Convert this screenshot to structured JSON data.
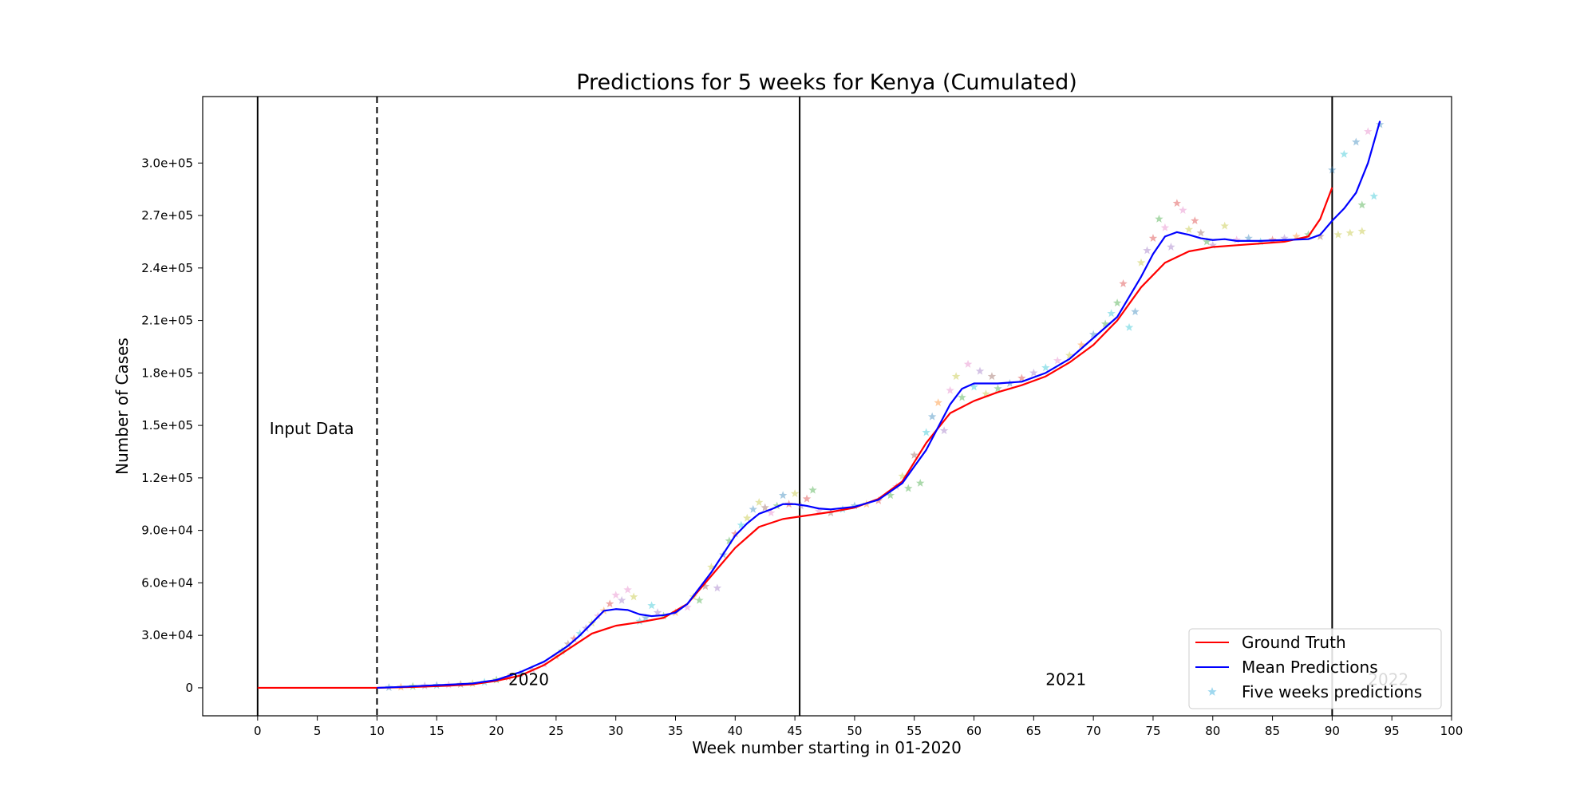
{
  "chart_data": {
    "type": "line",
    "title": "Predictions for 5 weeks for Kenya (Cumulated)",
    "xlabel": "Week number starting in 01-2020",
    "ylabel": "Number of Cases",
    "xlim": [
      -4.6,
      100
    ],
    "ylim": [
      -16000,
      338000
    ],
    "x_ticks": [
      0,
      5,
      10,
      15,
      20,
      25,
      30,
      35,
      40,
      45,
      50,
      55,
      60,
      65,
      70,
      75,
      80,
      85,
      90,
      95,
      100
    ],
    "x_tick_labels": [
      "0",
      "5",
      "10",
      "15",
      "20",
      "25",
      "30",
      "35",
      "40",
      "45",
      "50",
      "55",
      "60",
      "65",
      "70",
      "75",
      "80",
      "85",
      "90",
      "95",
      "100"
    ],
    "y_ticks": [
      0,
      30000,
      60000,
      90000,
      120000,
      150000,
      180000,
      210000,
      240000,
      270000,
      300000
    ],
    "y_tick_labels": [
      "0",
      "3.0e+04",
      "6.0e+04",
      "9.0e+04",
      "1.2e+05",
      "1.5e+05",
      "1.8e+05",
      "2.1e+05",
      "2.4e+05",
      "2.7e+05",
      "3.0e+05"
    ],
    "grid": false,
    "legend_position": "bottom-right",
    "vertical_lines": [
      {
        "x": 0,
        "style": "solid"
      },
      {
        "x": 10,
        "style": "dashed"
      },
      {
        "x": 45.4,
        "style": "solid"
      },
      {
        "x": 90,
        "style": "solid"
      }
    ],
    "annotations": [
      {
        "text": "Input Data",
        "x": 1,
        "y": 145000,
        "color": "#000000"
      },
      {
        "text": "2020",
        "x": 21,
        "y": 1500,
        "color": "#000000"
      },
      {
        "text": "2021",
        "x": 66,
        "y": 1500,
        "color": "#000000"
      },
      {
        "text": "2022",
        "x": 93,
        "y": 1500,
        "color": "#bbbbbb"
      }
    ],
    "series": [
      {
        "name": "Ground Truth",
        "color": "#ff0000",
        "x": [
          0,
          2,
          4,
          6,
          8,
          10,
          12,
          14,
          16,
          18,
          20,
          22,
          24,
          26,
          28,
          30,
          32,
          34,
          36,
          38,
          40,
          42,
          44,
          46,
          48,
          50,
          52,
          54,
          56,
          58,
          60,
          62,
          64,
          66,
          68,
          70,
          72,
          74,
          76,
          78,
          80,
          82,
          84,
          86,
          88,
          89,
          90
        ],
        "y": [
          0,
          0,
          0,
          0,
          0,
          0,
          300,
          700,
          1200,
          2000,
          4000,
          7000,
          13000,
          22000,
          31000,
          35500,
          37500,
          40000,
          48000,
          64000,
          80000,
          92000,
          96500,
          98500,
          100500,
          103000,
          108000,
          118000,
          140000,
          157000,
          164000,
          169000,
          173000,
          178000,
          186000,
          196000,
          210000,
          229000,
          243000,
          249500,
          252000,
          253000,
          254000,
          255000,
          258000,
          268000,
          286000
        ]
      },
      {
        "name": "Mean Predictions",
        "color": "#0000ff",
        "x": [
          10,
          12,
          14,
          16,
          18,
          20,
          22,
          24,
          26,
          27,
          28,
          29,
          30,
          31,
          32,
          33,
          34,
          35,
          36,
          38,
          40,
          41,
          42,
          43,
          44,
          45,
          46,
          47,
          48,
          50,
          52,
          54,
          56,
          58,
          59,
          60,
          62,
          64,
          66,
          68,
          70,
          72,
          74,
          75,
          76,
          77,
          78,
          79,
          80,
          81,
          82,
          84,
          86,
          88,
          89,
          90,
          91,
          92,
          93,
          94
        ],
        "y": [
          0,
          500,
          1200,
          1800,
          2500,
          4500,
          9000,
          15000,
          24000,
          30000,
          37000,
          44000,
          45000,
          44500,
          42000,
          41000,
          41500,
          43000,
          48000,
          66000,
          87000,
          94000,
          99500,
          102000,
          105000,
          105000,
          104000,
          102500,
          102000,
          103500,
          107500,
          117000,
          136000,
          162000,
          171000,
          174000,
          174000,
          175000,
          180000,
          188000,
          200000,
          212000,
          235000,
          248000,
          258000,
          260500,
          259000,
          257000,
          256000,
          256500,
          255500,
          255500,
          256000,
          256500,
          259000,
          267000,
          274000,
          283000,
          300000,
          324000
        ]
      },
      {
        "name": "Five weeks predictions",
        "color": "#87ceeb",
        "marker": "star",
        "points": [
          [
            11,
            200,
            "#1f77b4"
          ],
          [
            12,
            400,
            "#ff7f0e"
          ],
          [
            13,
            800,
            "#2ca02c"
          ],
          [
            14,
            1100,
            "#9467bd"
          ],
          [
            15,
            1400,
            "#1f77b4"
          ],
          [
            16,
            1700,
            "#e377c2"
          ],
          [
            17,
            2000,
            "#8c564b"
          ],
          [
            18,
            2400,
            "#bcbd22"
          ],
          [
            19,
            3200,
            "#17becf"
          ],
          [
            20,
            4500,
            "#2ca02c"
          ],
          [
            21,
            6000,
            "#d62728"
          ],
          [
            22,
            8000,
            "#1f77b4"
          ],
          [
            23,
            10500,
            "#9467bd"
          ],
          [
            24,
            13500,
            "#e377c2"
          ],
          [
            25,
            18000,
            "#ff7f0e"
          ],
          [
            25.5,
            21000,
            "#2ca02c"
          ],
          [
            26,
            25000,
            "#8c564b"
          ],
          [
            26.5,
            28000,
            "#d62728"
          ],
          [
            27,
            31000,
            "#17becf"
          ],
          [
            27.5,
            34000,
            "#9467bd"
          ],
          [
            28,
            37000,
            "#bcbd22"
          ],
          [
            28.5,
            41000,
            "#e377c2"
          ],
          [
            29,
            44000,
            "#ff7f0e"
          ],
          [
            29.5,
            48000,
            "#d62728"
          ],
          [
            30,
            53000,
            "#e377c2"
          ],
          [
            30.5,
            50000,
            "#9467bd"
          ],
          [
            31,
            56000,
            "#e377c2"
          ],
          [
            31.5,
            52000,
            "#bcbd22"
          ],
          [
            32,
            38000,
            "#17becf"
          ],
          [
            32.5,
            40000,
            "#1f77b4"
          ],
          [
            33,
            47000,
            "#17becf"
          ],
          [
            33.5,
            43000,
            "#9467bd"
          ],
          [
            34,
            41000,
            "#2ca02c"
          ],
          [
            35,
            43000,
            "#ff7f0e"
          ],
          [
            36,
            46000,
            "#e377c2"
          ],
          [
            36.5,
            52000,
            "#bcbd22"
          ],
          [
            37,
            50000,
            "#2ca02c"
          ],
          [
            37.5,
            58000,
            "#8c564b"
          ],
          [
            38,
            69000,
            "#bcbd22"
          ],
          [
            38.5,
            57000,
            "#9467bd"
          ],
          [
            39,
            76000,
            "#1f77b4"
          ],
          [
            39.5,
            84000,
            "#2ca02c"
          ],
          [
            40,
            88000,
            "#d62728"
          ],
          [
            40.5,
            93000,
            "#17becf"
          ],
          [
            41,
            97000,
            "#bcbd22"
          ],
          [
            41.5,
            102000,
            "#1f77b4"
          ],
          [
            42,
            106000,
            "#bcbd22"
          ],
          [
            42.5,
            103000,
            "#8c564b"
          ],
          [
            43,
            100000,
            "#e377c2"
          ],
          [
            43.5,
            104000,
            "#2ca02c"
          ],
          [
            44,
            110000,
            "#1f77b4"
          ],
          [
            44.5,
            105000,
            "#d62728"
          ],
          [
            45,
            111000,
            "#bcbd22"
          ],
          [
            45.5,
            104000,
            "#9467bd"
          ],
          [
            46,
            108000,
            "#d62728"
          ],
          [
            46.5,
            113000,
            "#2ca02c"
          ],
          [
            47,
            101000,
            "#e377c2"
          ],
          [
            48,
            100000,
            "#8c564b"
          ],
          [
            49,
            102000,
            "#17becf"
          ],
          [
            50,
            104000,
            "#1f77b4"
          ],
          [
            51,
            105000,
            "#ff7f0e"
          ],
          [
            52,
            107000,
            "#d62728"
          ],
          [
            53,
            110000,
            "#2ca02c"
          ],
          [
            53.5,
            115000,
            "#e377c2"
          ],
          [
            54,
            121000,
            "#bcbd22"
          ],
          [
            54.5,
            114000,
            "#2ca02c"
          ],
          [
            55,
            133000,
            "#8c564b"
          ],
          [
            55.5,
            117000,
            "#2ca02c"
          ],
          [
            56,
            146000,
            "#17becf"
          ],
          [
            56.5,
            155000,
            "#1f77b4"
          ],
          [
            57,
            163000,
            "#ff7f0e"
          ],
          [
            57.5,
            147000,
            "#9467bd"
          ],
          [
            58,
            170000,
            "#e377c2"
          ],
          [
            58.5,
            178000,
            "#bcbd22"
          ],
          [
            59,
            166000,
            "#2ca02c"
          ],
          [
            59.5,
            185000,
            "#e377c2"
          ],
          [
            60,
            172000,
            "#17becf"
          ],
          [
            60.5,
            181000,
            "#9467bd"
          ],
          [
            61,
            168000,
            "#bcbd22"
          ],
          [
            61.5,
            178000,
            "#8c564b"
          ],
          [
            62,
            171000,
            "#2ca02c"
          ],
          [
            63,
            174000,
            "#1f77b4"
          ],
          [
            64,
            177000,
            "#d62728"
          ],
          [
            65,
            180000,
            "#9467bd"
          ],
          [
            66,
            183000,
            "#17becf"
          ],
          [
            67,
            187000,
            "#e377c2"
          ],
          [
            68,
            190000,
            "#bcbd22"
          ],
          [
            69,
            196000,
            "#ff7f0e"
          ],
          [
            70,
            202000,
            "#1f77b4"
          ],
          [
            71,
            208000,
            "#2ca02c"
          ],
          [
            71.5,
            214000,
            "#17becf"
          ],
          [
            72,
            220000,
            "#2ca02c"
          ],
          [
            72.5,
            231000,
            "#d62728"
          ],
          [
            73,
            206000,
            "#17becf"
          ],
          [
            73.5,
            215000,
            "#1f77b4"
          ],
          [
            74,
            243000,
            "#bcbd22"
          ],
          [
            74.5,
            250000,
            "#9467bd"
          ],
          [
            75,
            257000,
            "#d62728"
          ],
          [
            75.5,
            268000,
            "#2ca02c"
          ],
          [
            76,
            263000,
            "#e377c2"
          ],
          [
            76.5,
            252000,
            "#9467bd"
          ],
          [
            77,
            277000,
            "#d62728"
          ],
          [
            77.5,
            273000,
            "#e377c2"
          ],
          [
            78,
            262000,
            "#bcbd22"
          ],
          [
            78.5,
            267000,
            "#d62728"
          ],
          [
            79,
            260000,
            "#8c564b"
          ],
          [
            79.5,
            255000,
            "#2ca02c"
          ],
          [
            80,
            253000,
            "#9467bd"
          ],
          [
            81,
            264000,
            "#bcbd22"
          ],
          [
            82,
            256000,
            "#e377c2"
          ],
          [
            83,
            257000,
            "#1f77b4"
          ],
          [
            84,
            255000,
            "#17becf"
          ],
          [
            85,
            256000,
            "#d62728"
          ],
          [
            86,
            257000,
            "#9467bd"
          ],
          [
            87,
            258000,
            "#ff7f0e"
          ],
          [
            88,
            259000,
            "#2ca02c"
          ],
          [
            89,
            258000,
            "#8c564b"
          ],
          [
            90,
            296000,
            "#1f77b4"
          ],
          [
            90.5,
            259000,
            "#bcbd22"
          ],
          [
            91,
            305000,
            "#17becf"
          ],
          [
            91.5,
            260000,
            "#bcbd22"
          ],
          [
            92,
            312000,
            "#1f77b4"
          ],
          [
            92.5,
            276000,
            "#2ca02c"
          ],
          [
            93,
            318000,
            "#e377c2"
          ],
          [
            93.5,
            281000,
            "#17becf"
          ],
          [
            94,
            322000,
            "#1f77b4"
          ],
          [
            92.5,
            261000,
            "#bcbd22"
          ]
        ]
      }
    ]
  }
}
